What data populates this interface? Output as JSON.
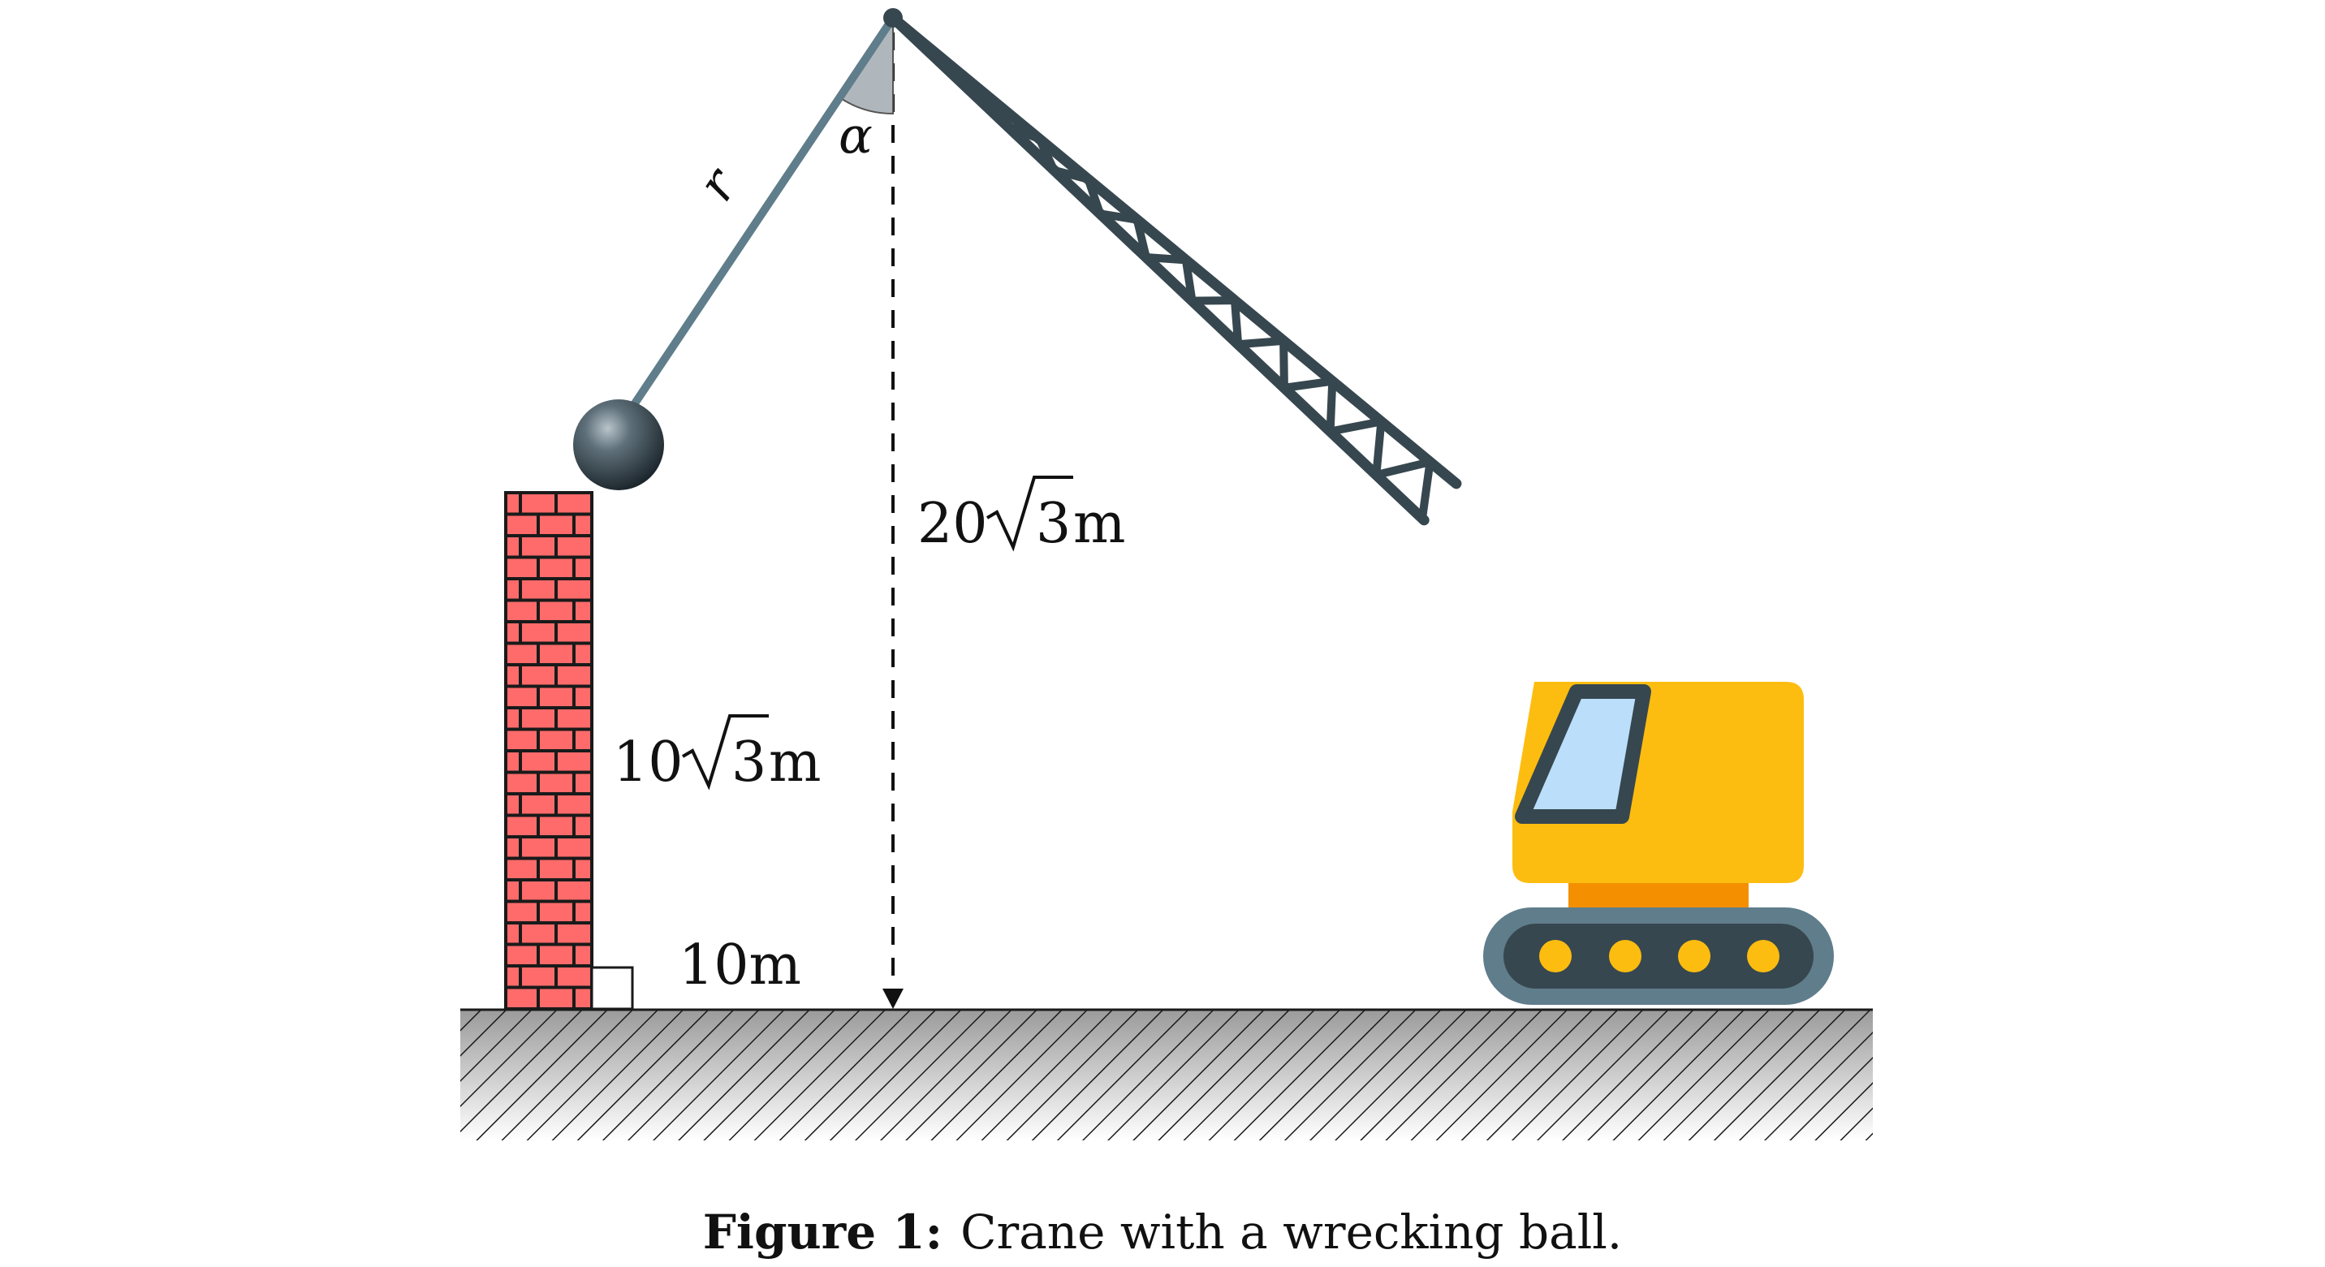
{
  "figure": {
    "caption_label": "Figure 1:",
    "caption_text": "Crane with a wrecking ball."
  },
  "labels": {
    "angle": "α",
    "cable": "r",
    "crane_height_coef": "20",
    "crane_height_rad": "3",
    "crane_height_unit": "m",
    "wall_height_coef": "10",
    "wall_height_rad": "3",
    "wall_height_unit": "m",
    "distance": "10m"
  },
  "colors": {
    "boom": "#37474f",
    "cable": "#607d8b",
    "brick": "#ff6b6b",
    "mortar": "#1a1a1a",
    "crane_body": "#fdbd10",
    "crane_base": "#f49000",
    "cab_window": "#bbdefb",
    "track": "#607d8b",
    "track_inner": "#37474f",
    "wheel": "#fdbd10",
    "angle_fill": "#b0b7bc"
  }
}
